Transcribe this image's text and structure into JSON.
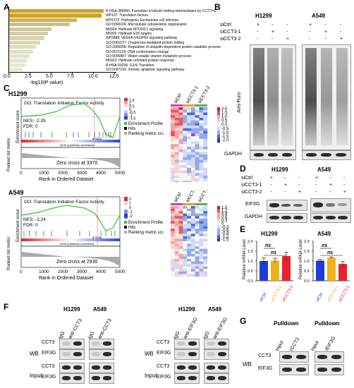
{
  "panels": [
    "A",
    "B",
    "C",
    "D",
    "E",
    "F",
    "G"
  ],
  "panel_a": {
    "xlabel": "-log10(P value)",
    "ticks": [
      "0.0",
      "2.5",
      "5.0",
      "7.5",
      "10.0",
      "12.5"
    ],
    "terms": [
      {
        "label": "R-HSA-389960: Formation of tubulin folding intermediates by CCT/TriC",
        "value": 11.2,
        "color": "#c9a227"
      },
      {
        "label": "WP107: Translation factors",
        "value": 10.9,
        "color": "#d2a21c"
      },
      {
        "label": "WP2272: Pathogenic Escherichia coli infection",
        "value": 8.0,
        "color": "#c9b26a"
      },
      {
        "label": "GO:0000226: Microtubule cytoskeleton organization",
        "value": 7.2,
        "color": "#c8c08a"
      },
      {
        "label": "M5924: Hallmark MTORC1 signaling",
        "value": 5.0,
        "color": "#cfc89a"
      },
      {
        "label": "M5925: Hallmark E2F targets",
        "value": 4.6,
        "color": "#d4cea4"
      },
      {
        "label": "WP3888: VEGFA-VEGFR2 signaling pathway",
        "value": 4.2,
        "color": "#d8d3ad"
      },
      {
        "label": "GO:0061077: Chaperone-mediated protein folding",
        "value": 3.7,
        "color": "#dcd7b5"
      },
      {
        "label": "GO:2000058: Regulation of ubiquitin-dependent protein catabolic process",
        "value": 3.2,
        "color": "#dfdcbe"
      },
      {
        "label": "GO:0071103: DNA conformation change",
        "value": 2.8,
        "color": "#e2dfc5"
      },
      {
        "label": "GO:0006887: Water-soluble vitamin metabolic process",
        "value": 2.4,
        "color": "#e4e2cc"
      },
      {
        "label": "M5922: Hallmark unfolded protein response",
        "value": 2.1,
        "color": "#e6e4d2"
      },
      {
        "label": "R-HSA-69206: G1/S Transition",
        "value": 1.9,
        "color": "#e8e6d6"
      },
      {
        "label": "GO:0097193: Intrinsic apoptotic signaling pathway",
        "value": 1.6,
        "color": "#eae8da"
      }
    ]
  },
  "panel_b": {
    "cell_lines": [
      "H1299",
      "A549"
    ],
    "rows": [
      "siCtrl",
      "siCCT3-1",
      "siCCT3-2"
    ],
    "signs": [
      [
        "+",
        "-",
        "-",
        "+",
        "-",
        "-"
      ],
      [
        "-",
        "+",
        "-",
        "-",
        "+",
        "-"
      ],
      [
        "-",
        "-",
        "+",
        "-",
        "-",
        "+"
      ]
    ],
    "ylabel": "Anti-Puro",
    "loading": "GAPDH"
  },
  "panel_c": {
    "gsea": [
      {
        "cell": "H1299",
        "title": "GO: Translation Initiation Factor Activity",
        "nes": "NES: -2.35",
        "fdr": "FDR: 0",
        "peak": "4056",
        "zero": "Zero cross at 3370",
        "corr": "siCtrl (positively correlated)"
      },
      {
        "cell": "A549",
        "title": "GO: Translation Initiation Factor Activity",
        "nes": "NES: -2.24",
        "fdr": "FDR: 0",
        "peak": "4226",
        "zero": "Zero cross at 2930",
        "corr": "siCtrl (positively correlated)"
      }
    ],
    "ylabel_top": "Enrichment score",
    "ylabel_bottom": "Ranked list metric",
    "xlabel": "Rank in Ordered Dataset",
    "xticks": [
      "0",
      "1000",
      "2000",
      "3000",
      "4000",
      "5000"
    ],
    "legend": [
      "Enrichment Profile",
      "Hits",
      "Ranking metric scores"
    ],
    "heat_cols": [
      "siCtrl",
      "siCCT3-1",
      "siCCT3-2"
    ],
    "heat_scale_1": [
      "2.0",
      "1.5",
      "1.0",
      "0.5",
      "0.0",
      "-0.5",
      "-1.0",
      "-1.5",
      "-2.0"
    ],
    "heat_scale_2": [
      "1.5",
      "1.2",
      "0.9",
      "0.6",
      "0.3",
      "0",
      "-0.3",
      "-0.6",
      "-0.9",
      "-1.2",
      "-1.5"
    ],
    "mini_scale_1": [
      "1.5",
      "1",
      "0.5",
      "0",
      "-0.5",
      "-1",
      "-1.5"
    ],
    "mini_scale_2": [
      "2",
      "1",
      "0",
      "-1",
      "-2"
    ]
  },
  "panel_d": {
    "cell_lines": [
      "H1299",
      "A549"
    ],
    "rows": [
      "siCtrl",
      "siCCT3-1",
      "siCCT3-2"
    ],
    "signs": [
      [
        "+",
        "-",
        "-",
        "+",
        "-",
        "-"
      ],
      [
        "-",
        "+",
        "-",
        "-",
        "+",
        "-"
      ],
      [
        "-",
        "-",
        "+",
        "-",
        "-",
        "+"
      ]
    ],
    "blots": [
      "EIF3G",
      "GAPDH"
    ]
  },
  "panel_e": {
    "chart_data": [
      {
        "type": "bar",
        "title": "H1299",
        "ylabel": "Relative mRNA Level",
        "categories": [
          "siCtrl",
          "siCCT3-1",
          "siCCT3-2"
        ],
        "values": [
          1.0,
          1.02,
          1.25
        ],
        "errors": [
          0.15,
          0.12,
          0.2
        ],
        "ylim": [
          0,
          2.0
        ],
        "yticks": [
          "0.0",
          "0.5",
          "1.0",
          "1.5",
          "2.0"
        ],
        "colors": [
          "#1f3bd6",
          "#f0b21c",
          "#e8232d"
        ],
        "annotations": [
          "ns",
          "ns"
        ]
      },
      {
        "type": "bar",
        "title": "A549",
        "ylabel": "Relative mRNA Level",
        "categories": [
          "siCtrl",
          "siCCT3-1",
          "siCCT3-2"
        ],
        "values": [
          1.02,
          1.17,
          0.85
        ],
        "errors": [
          0.06,
          0.04,
          0.12
        ],
        "ylim": [
          0,
          2.0
        ],
        "yticks": [
          "0.0",
          "0.5",
          "1.0",
          "1.5",
          "2.0"
        ],
        "colors": [
          "#1f3bd6",
          "#f0b21c",
          "#e8232d"
        ],
        "annotations": [
          "ns",
          "ns"
        ]
      }
    ]
  },
  "panel_f": {
    "left": {
      "cells": [
        "H1299",
        "A549"
      ],
      "cols": [
        "IgG",
        "anti-CCT3",
        "IgG",
        "anti-CCT3"
      ]
    },
    "right": {
      "cells": [
        "H1299",
        "A549"
      ],
      "cols": [
        "IgG",
        "anti-EIF3G",
        "IgG",
        "anti-EIF3G"
      ]
    },
    "groups": [
      "WB",
      "Input"
    ],
    "proteins": [
      "CCT3",
      "EIF3G"
    ]
  },
  "panel_g": {
    "header": [
      "Pulldown",
      "Pulldown"
    ],
    "cols": [
      "Input",
      "rCCT3",
      "Input",
      "rEIF3G"
    ],
    "group": "WB",
    "proteins": [
      "CCT3",
      "EIF3G"
    ]
  }
}
